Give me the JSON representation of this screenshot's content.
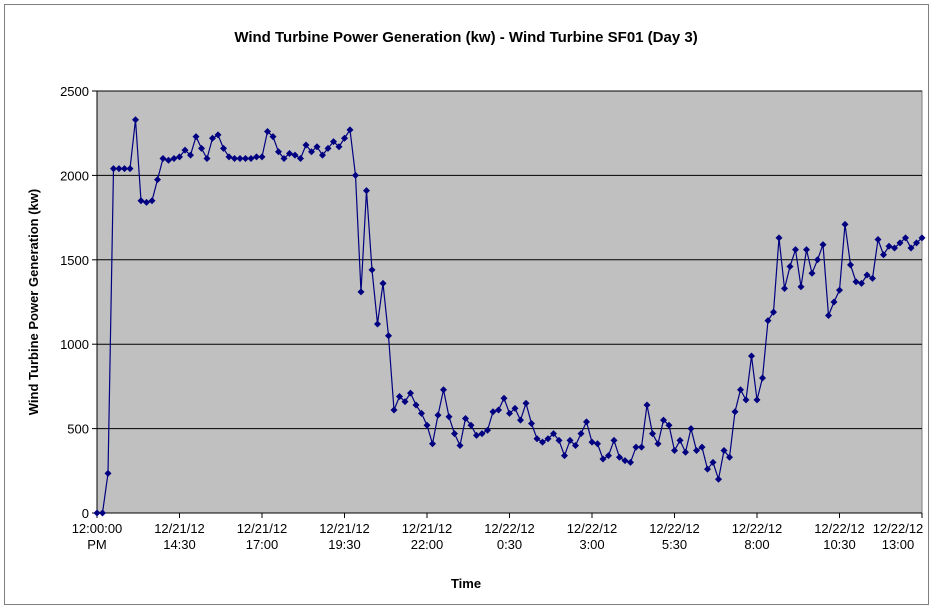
{
  "chart_data": {
    "type": "line",
    "title": "Wind Turbine Power Generation (kw) - Wind Turbine SF01 (Day 3)",
    "x_label": "Time",
    "y_label": "Wind Turbine Power Generation (kw)",
    "categories": [
      "12:00:00 PM",
      null,
      null,
      null,
      null,
      null,
      null,
      null,
      null,
      null,
      null,
      null,
      null,
      null,
      null,
      "12/21/12 14:30",
      null,
      null,
      null,
      null,
      null,
      null,
      null,
      null,
      null,
      null,
      null,
      null,
      null,
      null,
      "12/21/12 17:00",
      null,
      null,
      null,
      null,
      null,
      null,
      null,
      null,
      null,
      null,
      null,
      null,
      null,
      null,
      "12/21/12 19:30",
      null,
      null,
      null,
      null,
      null,
      null,
      null,
      null,
      null,
      null,
      null,
      null,
      null,
      null,
      "12/21/12 22:00",
      null,
      null,
      null,
      null,
      null,
      null,
      null,
      null,
      null,
      null,
      null,
      null,
      null,
      null,
      "12/22/12 0:30",
      null,
      null,
      null,
      null,
      null,
      null,
      null,
      null,
      null,
      null,
      null,
      null,
      null,
      null,
      "12/22/12 3:00",
      null,
      null,
      null,
      null,
      null,
      null,
      null,
      null,
      null,
      null,
      null,
      null,
      null,
      null,
      "12/22/12 5:30",
      null,
      null,
      null,
      null,
      null,
      null,
      null,
      null,
      null,
      null,
      null,
      null,
      null,
      null,
      "12/22/12 8:00",
      null,
      null,
      null,
      null,
      null,
      null,
      null,
      null,
      null,
      null,
      null,
      null,
      null,
      null,
      "12/22/12 10:30",
      null,
      null,
      null,
      null,
      null,
      null,
      null,
      null,
      null,
      null,
      null,
      null,
      null,
      null,
      "12/22/12 13:00"
    ],
    "values": [
      0,
      0,
      235,
      2040,
      2040,
      2040,
      2040,
      2330,
      1850,
      1840,
      1850,
      1975,
      2100,
      2090,
      2100,
      2110,
      2150,
      2120,
      2230,
      2160,
      2100,
      2220,
      2240,
      2160,
      2110,
      2100,
      2100,
      2100,
      2100,
      2110,
      2110,
      2260,
      2230,
      2140,
      2100,
      2130,
      2120,
      2100,
      2180,
      2140,
      2170,
      2120,
      2160,
      2200,
      2170,
      2220,
      2270,
      2000,
      1310,
      1910,
      1440,
      1120,
      1360,
      1050,
      610,
      690,
      660,
      710,
      640,
      590,
      520,
      410,
      580,
      730,
      570,
      470,
      400,
      560,
      520,
      460,
      470,
      490,
      600,
      610,
      680,
      590,
      620,
      550,
      650,
      530,
      440,
      420,
      440,
      470,
      430,
      340,
      430,
      400,
      470,
      540,
      420,
      410,
      320,
      340,
      430,
      330,
      310,
      300,
      390,
      390,
      640,
      470,
      410,
      550,
      520,
      370,
      430,
      360,
      500,
      370,
      390,
      260,
      300,
      200,
      370,
      330,
      600,
      730,
      670,
      930,
      670,
      800,
      1140,
      1190,
      1630,
      1330,
      1460,
      1560,
      1340,
      1560,
      1420,
      1500,
      1590,
      1170,
      1250,
      1320,
      1710,
      1470,
      1370,
      1360,
      1410,
      1390,
      1620,
      1530,
      1580,
      1570,
      1600,
      1630,
      1570,
      1600,
      1630
    ],
    "color": "#000080",
    "ylim": [
      0,
      2500
    ],
    "yticks": [
      0,
      500,
      1000,
      1500,
      2000,
      2500
    ],
    "grid": true
  }
}
